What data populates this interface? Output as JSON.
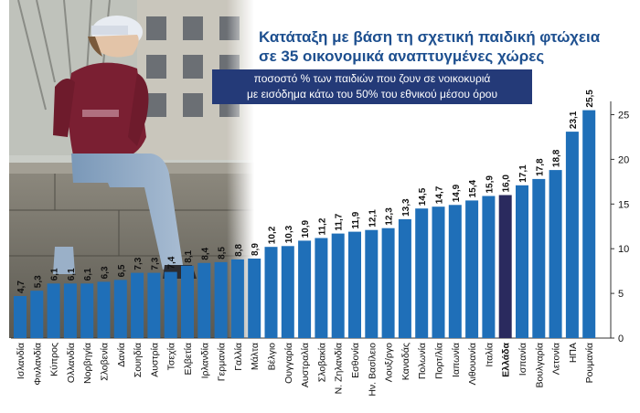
{
  "chart_data": {
    "type": "bar",
    "title_lines": [
      "Κατάταξη με βάση τη σχετική παιδική φτώχεια",
      "σε 35 οικονομικά αναπτυγμένες χώρες"
    ],
    "subtitle_lines": [
      "ποσοστό % των παιδιών που ζουν σε νοικοκυριά",
      "με εισόδημα κάτω του 50% του εθνικού μέσου όρου"
    ],
    "categories": [
      "Ισλανδία",
      "Φινλανδία",
      "Κύπρος",
      "Ολλανδία",
      "Νορβηγία",
      "Σλοβενία",
      "Δανία",
      "Σουηδία",
      "Αυστρία",
      "Τσεχία",
      "Ελβετία",
      "Ιρλανδία",
      "Γερμανία",
      "Γαλλία",
      "Μάλτα",
      "Βέλγιο",
      "Ουγγαρία",
      "Αυστραλία",
      "Σλοβακία",
      "Ν. Ζηλανδία",
      "Εσθονία",
      "Ην. Βασίλειο",
      "Λουξ/ργο",
      "Καναδάς",
      "Πολωνία",
      "Πορτ/λία",
      "Ιαπωνία",
      "Λιθουανία",
      "Ιταλία",
      "Ελλάδα",
      "Ισπανία",
      "Βουλγαρία",
      "Λετονία",
      "ΗΠΑ",
      "Ρουμανία"
    ],
    "values": [
      4.7,
      5.3,
      6.1,
      6.1,
      6.1,
      6.3,
      6.5,
      7.3,
      7.3,
      7.4,
      8.1,
      8.4,
      8.5,
      8.8,
      8.9,
      10.2,
      10.3,
      10.9,
      11.2,
      11.7,
      11.9,
      12.1,
      12.3,
      13.3,
      14.5,
      14.7,
      14.9,
      15.4,
      15.9,
      16.0,
      17.1,
      17.8,
      18.8,
      23.1,
      25.5
    ],
    "value_labels": [
      "4,7",
      "5,3",
      "6,1",
      "6,1",
      "6,1",
      "6,3",
      "6,5",
      "7,3",
      "7,3",
      "7,4",
      "8,1",
      "8,4",
      "8,5",
      "8,8",
      "8,9",
      "10,2",
      "10,3",
      "10,9",
      "11,2",
      "11,7",
      "11,9",
      "12,1",
      "12,3",
      "13,3",
      "14,5",
      "14,7",
      "14,9",
      "15,4",
      "15,9",
      "16,0",
      "17,1",
      "17,8",
      "18,8",
      "23,1",
      "25,5"
    ],
    "highlight": "Ελλάδα",
    "y_ticks": [
      0,
      5,
      10,
      15,
      20,
      25
    ],
    "y_tick_labels": [
      "0",
      "5",
      "10",
      "15",
      "20",
      "25"
    ],
    "ylim": [
      0,
      26.5
    ],
    "grid": false,
    "colors": {
      "bar": "#1f6fb8",
      "highlight": "#2a2a5e",
      "text": "#111111",
      "title": "#1d4f8f",
      "subtitle_bg": "#243a78"
    }
  }
}
